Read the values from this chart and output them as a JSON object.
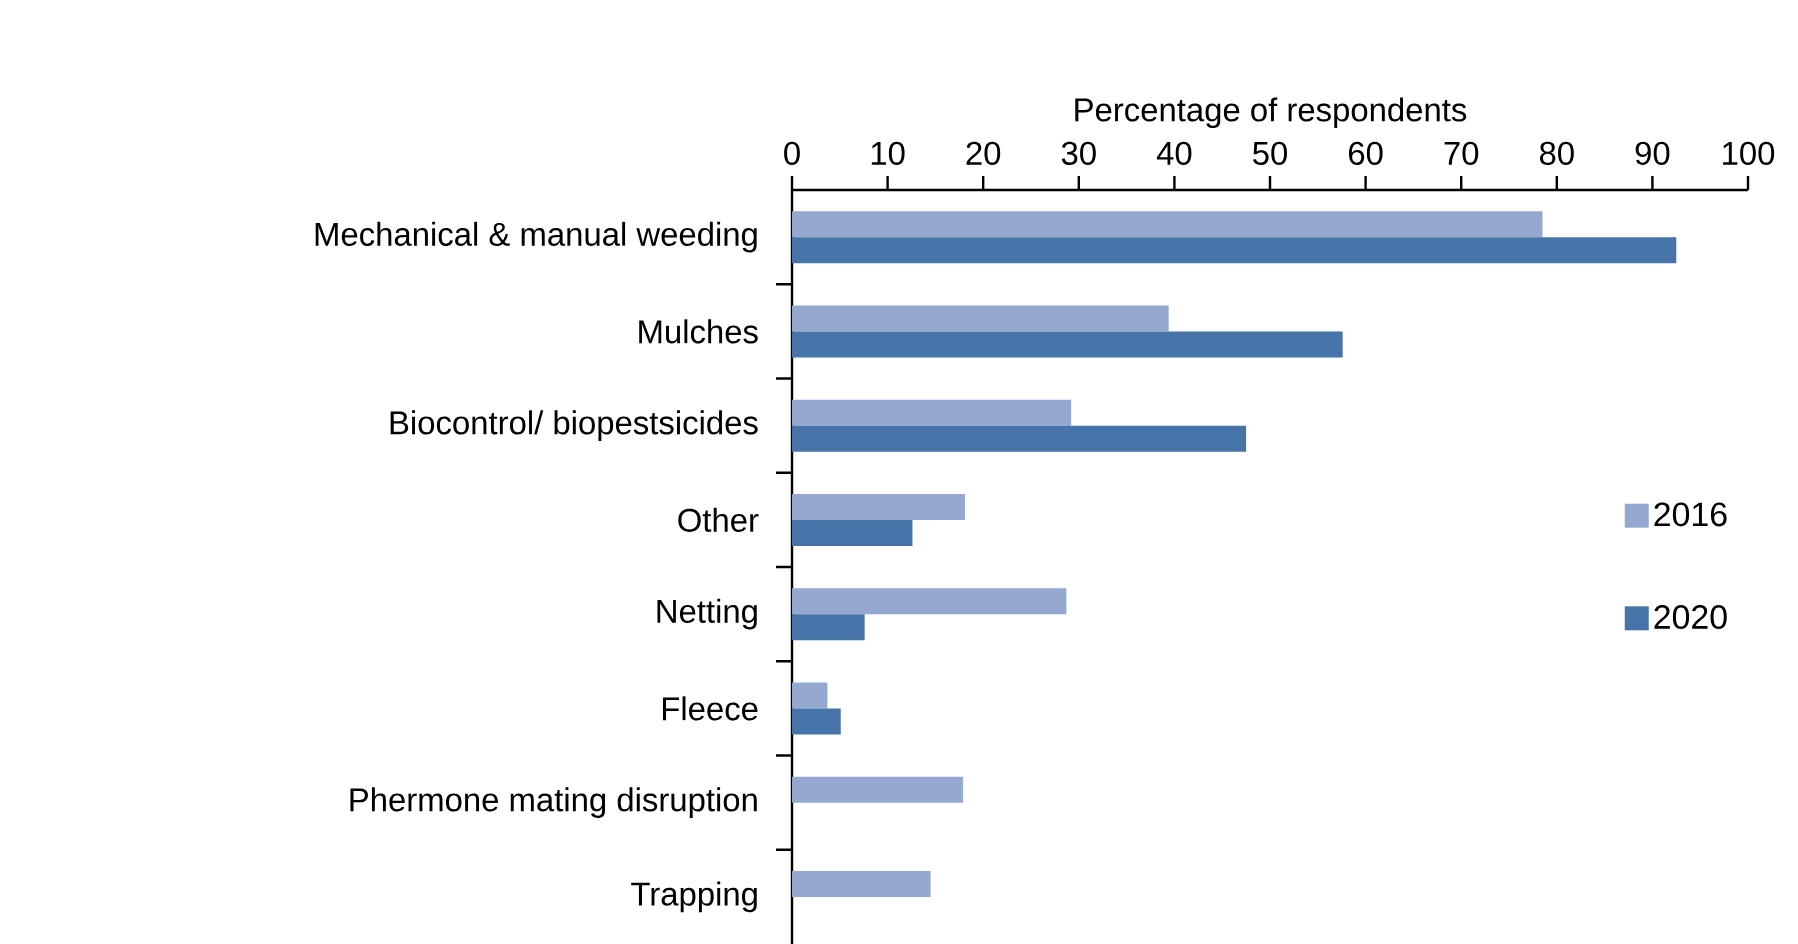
{
  "chart_data": {
    "type": "bar",
    "orientation": "horizontal",
    "xlabel": "Percentage of respondents",
    "categories": [
      "Mechanical & manual weeding",
      "Mulches",
      "Biocontrol/ biopestsicides",
      "Other",
      "Netting",
      "Fleece",
      "Phermone mating disruption",
      "Trapping"
    ],
    "series": [
      {
        "name": "2016",
        "color": "#95a9d0",
        "values": [
          78.5,
          39.4,
          29.2,
          18.1,
          28.7,
          3.7,
          17.9,
          14.5
        ]
      },
      {
        "name": "2020",
        "color": "#4674a8",
        "values": [
          92.5,
          57.6,
          47.5,
          12.6,
          7.6,
          5.1,
          null,
          null
        ]
      }
    ],
    "xlim": [
      0,
      100
    ],
    "xticks": [
      0,
      10,
      20,
      30,
      40,
      50,
      60,
      70,
      80,
      90,
      100
    ],
    "grid": false,
    "legend": "right"
  }
}
